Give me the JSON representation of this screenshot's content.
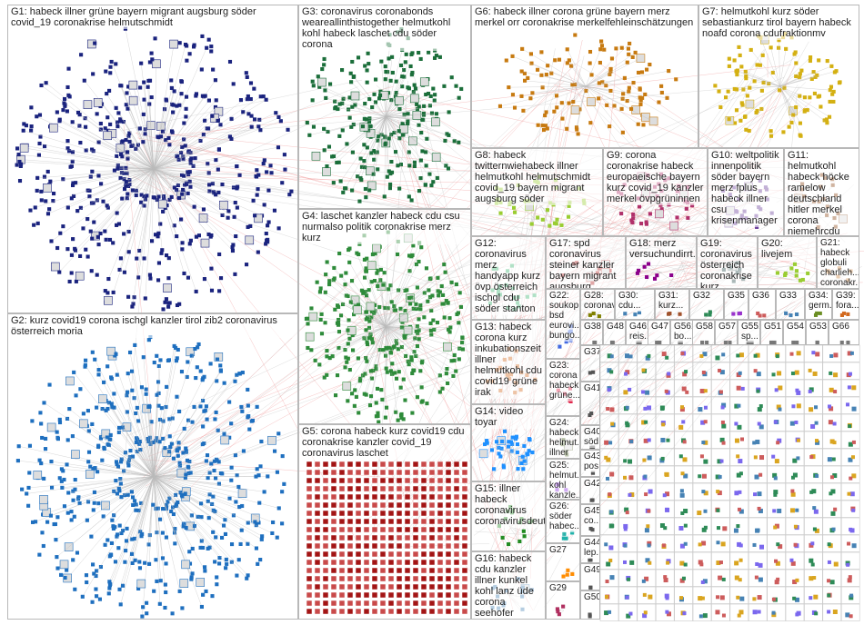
{
  "groups": [
    {
      "label": "G1: habeck illner grüne bayern migrant augsburg söder covid_19 coronakrise helmutschmidt"
    },
    {
      "label": "G2: kurz covid19 corona ischgl kanzler tirol zib2 coronavirus österreich moria"
    },
    {
      "label": "G3: coronavirus coronabonds weareallinthistogether helmutkohl kohl habeck laschet cdu söder corona"
    },
    {
      "label": "G4: laschet kanzler habeck cdu csu nurmalso politik coronakrise merz kurz"
    },
    {
      "label": "G5: corona habeck kurz covid19 cdu coronakrise kanzler covid_19 coronavirus laschet"
    },
    {
      "label": "G6: habeck illner corona grüne bayern merz merkel orr coronakrise merkelfehleinschätzungen"
    },
    {
      "label": "G7: helmutkohl kurz söder sebastiankurz tirol bayern habeck noafd corona cdufraktionmv"
    },
    {
      "label": "G8: habeck twitternwiehabeck illner helmutkohl helmutschmidt covid_19 bayern migrant augsburg söder"
    },
    {
      "label": "G9: corona coronakrise habeck europaeische bayern kurz covid_19 kanzler merkel övpgrüninnen"
    },
    {
      "label": "G10: weltpolitik innenpolitik söder bayern merz fplus habeck illner csu krisenmanager"
    },
    {
      "label": "G11: helmutkohl habeck höcke ramelow deutschland hitler merkel corona niemehrcdu merz"
    },
    {
      "label": "G12: coronavirus merz handyapp kurz övp österreich ischgl cdu söder stanton"
    },
    {
      "label": "G13: habeck corona kurz inkubationszeit illner helmutkohl cdu covid19 grüne irak"
    },
    {
      "label": "G14: video toyar"
    },
    {
      "label": "G15: illner habeck coronavirus coronavirusdeut..."
    },
    {
      "label": "G16: habeck cdu kanzler illner kunkel kohl lanz üde corona seehofer"
    },
    {
      "label": "G17: spd coronavirus steiner kanzler bayern migrant augsburg söder..."
    },
    {
      "label": "G18: merz versuchundirrt..."
    },
    {
      "label": "G19: coronavirus österreich coronakrise kurz..."
    },
    {
      "label": "G20: livejem"
    },
    {
      "label": "G21: habeck globuli charlieh... coronakr..."
    },
    {
      "label": "G22: soukop bsd eurovi... bungo..."
    },
    {
      "label": "G23: corona habeck grüne..."
    },
    {
      "label": "G24: habeck helmut... illner las..."
    },
    {
      "label": "G25: helmut... kohl kanzle..."
    },
    {
      "label": "G26: söder habec..."
    },
    {
      "label": "G27"
    },
    {
      "label": "G29"
    },
    {
      "label": "G28: coronav..."
    },
    {
      "label": "G30: cdu..."
    },
    {
      "label": "G31: kurz..."
    },
    {
      "label": "G32"
    },
    {
      "label": "G35"
    },
    {
      "label": "G36"
    },
    {
      "label": "G33"
    },
    {
      "label": "G34: germ..."
    },
    {
      "label": "G39: fora..."
    },
    {
      "label": "G38"
    },
    {
      "label": "G48"
    },
    {
      "label": "G46: reis..."
    },
    {
      "label": "G47"
    },
    {
      "label": "G56: bo..."
    },
    {
      "label": "G58"
    },
    {
      "label": "G57"
    },
    {
      "label": "G55: sp..."
    },
    {
      "label": "G51"
    },
    {
      "label": "G54"
    },
    {
      "label": "G53"
    },
    {
      "label": "G66"
    },
    {
      "label": "G37"
    },
    {
      "label": "G41"
    },
    {
      "label": "G40: söd..."
    },
    {
      "label": "G43: pos..."
    },
    {
      "label": "G42"
    },
    {
      "label": "G45: co..."
    },
    {
      "label": "G44: lep..."
    },
    {
      "label": "G49"
    },
    {
      "label": "G50"
    }
  ]
}
